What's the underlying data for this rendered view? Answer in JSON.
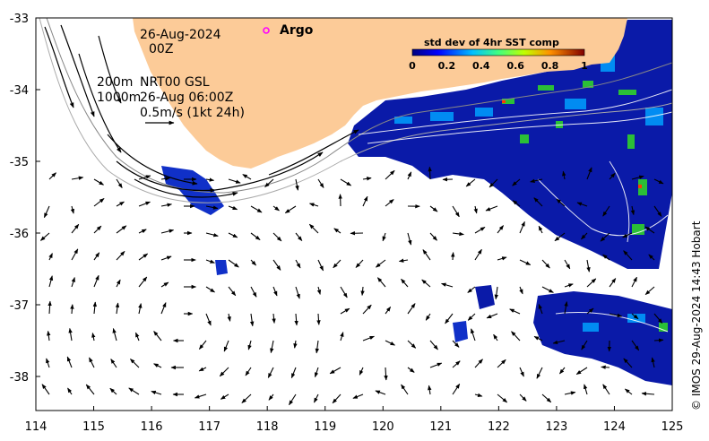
{
  "map": {
    "date": "26-Aug-2024",
    "hour": "00Z",
    "legend_argo": "Argo",
    "depth_200": "200m",
    "depth_1000": "1000m",
    "product": "NRT00 GSL",
    "product_time": "26-Aug 06:00Z",
    "scale_text": "0.5m/s (1kt 24h)",
    "colorbar_title": "std dev of 4hr SST comp",
    "colorbar_ticks": [
      "0",
      "0.2",
      "0.4",
      "0.6",
      "0.8",
      "1"
    ],
    "x_ticks": [
      "114",
      "115",
      "116",
      "117",
      "118",
      "119",
      "120",
      "121",
      "122",
      "123",
      "124",
      "125"
    ],
    "y_ticks": [
      "-33",
      "-34",
      "-35",
      "-36",
      "-37",
      "-38"
    ],
    "credit": "© IMOS 29-Aug-2024 14:43 Hobart",
    "colors": {
      "land": "#fccb98",
      "argo": "#ff00ff",
      "sst_low": "#0a1aa8",
      "sst_mid": "#0046e6",
      "sst_high": "#2fd12b"
    }
  }
}
